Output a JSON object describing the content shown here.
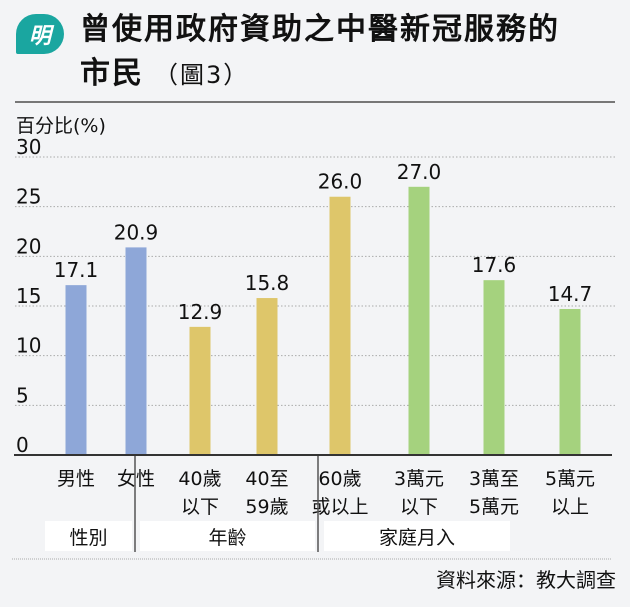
{
  "logo_text": "明",
  "title_line1": "曾使用政府資助之中醫新冠服務的",
  "title_line2": "市民",
  "figure_label": "（圖3）",
  "source": "資料來源：教大調查",
  "colors": {
    "gender": "#8ea7d8",
    "age": "#dec66a",
    "income": "#a5d27e"
  },
  "chart_data": {
    "type": "bar",
    "ylabel": "百分比(%)",
    "ylim": [
      0,
      30
    ],
    "yticks": [
      0,
      5,
      10,
      15,
      20,
      25,
      30
    ],
    "grid": true,
    "categories": [
      [
        "男性"
      ],
      [
        "女性"
      ],
      [
        "40歲",
        "以下"
      ],
      [
        "40至",
        "59歲"
      ],
      [
        "60歲",
        "或以上"
      ],
      [
        "3萬元",
        "以下"
      ],
      [
        "3萬至",
        "5萬元"
      ],
      [
        "5萬元",
        "以上"
      ]
    ],
    "values": [
      17.1,
      20.9,
      12.9,
      15.8,
      26.0,
      27.0,
      17.6,
      14.7
    ],
    "value_labels": [
      "17.1",
      "20.9",
      "12.9",
      "15.8",
      "26.0",
      "27.0",
      "17.6",
      "14.7"
    ],
    "groups": [
      {
        "name": "性別",
        "indices": [
          0,
          1
        ],
        "color_key": "gender"
      },
      {
        "name": "年齡",
        "indices": [
          2,
          3,
          4
        ],
        "color_key": "age"
      },
      {
        "name": "家庭月入",
        "indices": [
          5,
          6,
          7
        ],
        "color_key": "income"
      }
    ]
  }
}
